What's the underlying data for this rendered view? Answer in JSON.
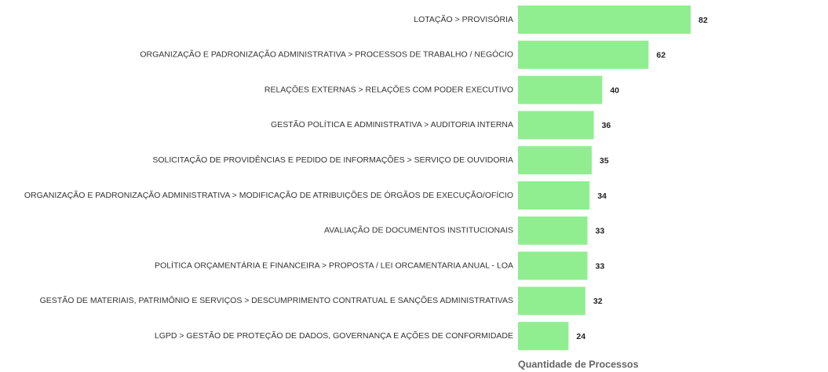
{
  "chart_data": {
    "type": "barh",
    "categories": [
      "LOTAÇÃO > PROVISÓRIA",
      "ORGANIZAÇÃO E PADRONIZAÇÃO ADMINISTRATIVA > PROCESSOS DE TRABALHO / NEGÓCIO",
      "RELAÇÕES EXTERNAS > RELAÇÕES COM PODER EXECUTIVO",
      "GESTÃO POLÍTICA E ADMINISTRATIVA > AUDITORIA INTERNA",
      "SOLICITAÇÃO DE PROVIDÊNCIAS E PEDIDO DE INFORMAÇÕES > SERVIÇO DE OUVIDORIA",
      "ORGANIZAÇÃO E PADRONIZAÇÃO ADMINISTRATIVA > MODIFICAÇÃO DE ATRIBUIÇÕES DE ÓRGÃOS DE EXECUÇÃO/OFÍCIO",
      "AVALIAÇÃO DE DOCUMENTOS INSTITUCIONAIS",
      "POLÍTICA ORÇAMENTÁRIA E FINANCEIRA > PROPOSTA / LEI ORCAMENTARIA ANUAL - LOA",
      "GESTÃO DE MATERIAIS, PATRIMÔNIO E SERVIÇOS > DESCUMPRIMENTO CONTRATUAL E SANÇÕES ADMINISTRATIVAS",
      "LGPD > GESTÃO DE PROTEÇÃO DE DADOS, GOVERNANÇA E AÇÕES DE CONFORMIDADE"
    ],
    "values": [
      82,
      62,
      40,
      36,
      35,
      34,
      33,
      33,
      32,
      24
    ],
    "color": "#90ee90",
    "xlabel": "Quantidade de Processos",
    "xlim": [
      0,
      90
    ]
  }
}
